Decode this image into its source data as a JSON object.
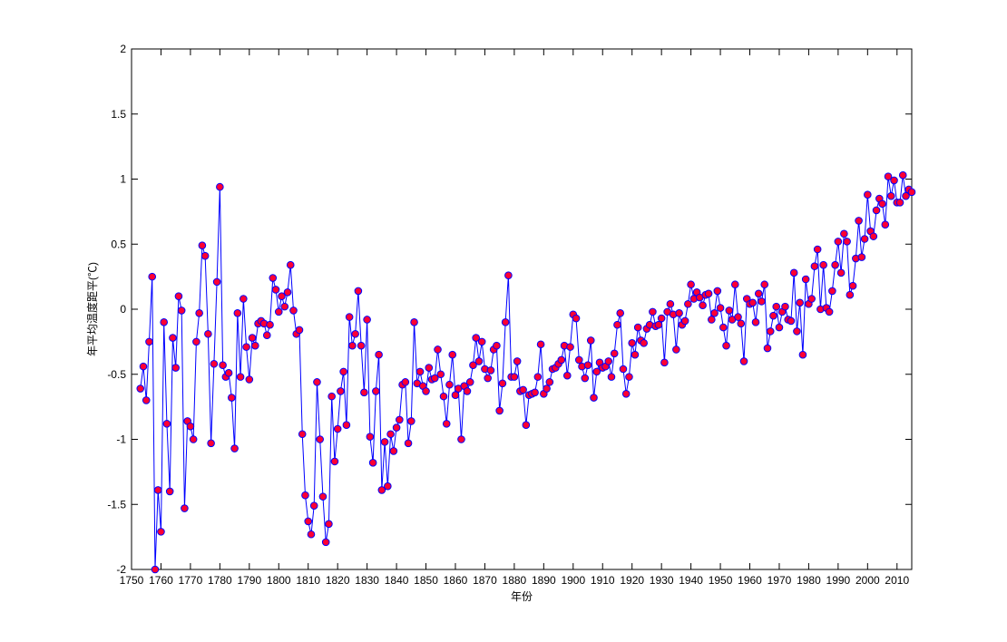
{
  "chart_data": {
    "type": "line",
    "xlabel": "年份",
    "ylabel": "年平均温度距平(℃)",
    "x": [
      1753,
      1754,
      1755,
      1756,
      1757,
      1758,
      1759,
      1760,
      1761,
      1762,
      1763,
      1764,
      1765,
      1766,
      1767,
      1768,
      1769,
      1770,
      1771,
      1772,
      1773,
      1774,
      1775,
      1776,
      1777,
      1778,
      1779,
      1780,
      1781,
      1782,
      1783,
      1784,
      1785,
      1786,
      1787,
      1788,
      1789,
      1790,
      1791,
      1792,
      1793,
      1794,
      1795,
      1796,
      1797,
      1798,
      1799,
      1800,
      1801,
      1802,
      1803,
      1804,
      1805,
      1806,
      1807,
      1808,
      1809,
      1810,
      1811,
      1812,
      1813,
      1814,
      1815,
      1816,
      1817,
      1818,
      1819,
      1820,
      1821,
      1822,
      1823,
      1824,
      1825,
      1826,
      1827,
      1828,
      1829,
      1830,
      1831,
      1832,
      1833,
      1834,
      1835,
      1836,
      1837,
      1838,
      1839,
      1840,
      1841,
      1842,
      1843,
      1844,
      1845,
      1846,
      1847,
      1848,
      1849,
      1850,
      1851,
      1852,
      1853,
      1854,
      1855,
      1856,
      1857,
      1858,
      1859,
      1860,
      1861,
      1862,
      1863,
      1864,
      1865,
      1866,
      1867,
      1868,
      1869,
      1870,
      1871,
      1872,
      1873,
      1874,
      1875,
      1876,
      1877,
      1878,
      1879,
      1880,
      1881,
      1882,
      1883,
      1884,
      1885,
      1886,
      1887,
      1888,
      1889,
      1890,
      1891,
      1892,
      1893,
      1894,
      1895,
      1896,
      1897,
      1898,
      1899,
      1900,
      1901,
      1902,
      1903,
      1904,
      1905,
      1906,
      1907,
      1908,
      1909,
      1910,
      1911,
      1912,
      1913,
      1914,
      1915,
      1916,
      1917,
      1918,
      1919,
      1920,
      1921,
      1922,
      1923,
      1924,
      1925,
      1926,
      1927,
      1928,
      1929,
      1930,
      1931,
      1932,
      1933,
      1934,
      1935,
      1936,
      1937,
      1938,
      1939,
      1940,
      1941,
      1942,
      1943,
      1944,
      1945,
      1946,
      1947,
      1948,
      1949,
      1950,
      1951,
      1952,
      1953,
      1954,
      1955,
      1956,
      1957,
      1958,
      1959,
      1960,
      1961,
      1962,
      1963,
      1964,
      1965,
      1966,
      1967,
      1968,
      1969,
      1970,
      1971,
      1972,
      1973,
      1974,
      1975,
      1976,
      1977,
      1978,
      1979,
      1980,
      1981,
      1982,
      1983,
      1984,
      1985,
      1986,
      1987,
      1988,
      1989,
      1990,
      1991,
      1992,
      1993,
      1994,
      1995,
      1996,
      1997,
      1998,
      1999,
      2000,
      2001,
      2002,
      2003,
      2004,
      2005,
      2006,
      2007,
      2008,
      2009,
      2010,
      2011,
      2012,
      2013,
      2014,
      2015
    ],
    "values": [
      -0.61,
      -0.44,
      -0.7,
      -0.25,
      0.25,
      -2.0,
      -1.39,
      -1.71,
      -0.1,
      -0.88,
      -1.4,
      -0.22,
      -0.45,
      0.1,
      -0.01,
      -1.53,
      -0.86,
      -0.9,
      -1.0,
      -0.25,
      -0.03,
      0.49,
      0.41,
      -0.19,
      -1.03,
      -0.42,
      0.21,
      0.94,
      -0.43,
      -0.52,
      -0.49,
      -0.68,
      -1.07,
      -0.03,
      -0.52,
      0.08,
      -0.29,
      -0.54,
      -0.22,
      -0.28,
      -0.11,
      -0.09,
      -0.11,
      -0.2,
      -0.12,
      0.24,
      0.15,
      -0.02,
      0.1,
      0.02,
      0.13,
      0.34,
      -0.01,
      -0.19,
      -0.16,
      -0.96,
      -1.43,
      -1.63,
      -1.73,
      -1.51,
      -0.56,
      -1.0,
      -1.44,
      -1.79,
      -1.65,
      -0.67,
      -1.17,
      -0.92,
      -0.63,
      -0.48,
      -0.89,
      -0.06,
      -0.28,
      -0.19,
      0.14,
      -0.28,
      -0.64,
      -0.08,
      -0.98,
      -1.18,
      -0.63,
      -0.35,
      -1.39,
      -1.02,
      -1.36,
      -0.96,
      -1.09,
      -0.91,
      -0.85,
      -0.58,
      -0.56,
      -1.03,
      -0.86,
      -0.1,
      -0.57,
      -0.48,
      -0.59,
      -0.63,
      -0.45,
      -0.54,
      -0.53,
      -0.31,
      -0.5,
      -0.67,
      -0.88,
      -0.58,
      -0.35,
      -0.66,
      -0.61,
      -1.0,
      -0.59,
      -0.63,
      -0.56,
      -0.43,
      -0.22,
      -0.4,
      -0.25,
      -0.46,
      -0.53,
      -0.47,
      -0.31,
      -0.28,
      -0.78,
      -0.57,
      -0.1,
      0.26,
      -0.52,
      -0.52,
      -0.4,
      -0.63,
      -0.62,
      -0.89,
      -0.66,
      -0.65,
      -0.64,
      -0.52,
      -0.27,
      -0.65,
      -0.61,
      -0.56,
      -0.46,
      -0.45,
      -0.42,
      -0.39,
      -0.28,
      -0.51,
      -0.29,
      -0.04,
      -0.07,
      -0.39,
      -0.44,
      -0.53,
      -0.43,
      -0.24,
      -0.68,
      -0.48,
      -0.41,
      -0.45,
      -0.44,
      -0.4,
      -0.52,
      -0.34,
      -0.12,
      -0.03,
      -0.46,
      -0.65,
      -0.52,
      -0.26,
      -0.35,
      -0.14,
      -0.24,
      -0.26,
      -0.15,
      -0.12,
      -0.02,
      -0.13,
      -0.12,
      -0.07,
      -0.41,
      -0.02,
      0.04,
      -0.04,
      -0.31,
      -0.03,
      -0.12,
      -0.09,
      0.04,
      0.19,
      0.08,
      0.13,
      0.09,
      0.03,
      0.11,
      0.12,
      -0.08,
      -0.03,
      0.14,
      0.01,
      -0.14,
      -0.28,
      -0.01,
      -0.08,
      0.19,
      -0.06,
      -0.11,
      -0.4,
      0.08,
      0.04,
      0.05,
      -0.1,
      0.12,
      0.06,
      0.19,
      -0.3,
      -0.17,
      -0.05,
      0.02,
      -0.14,
      -0.02,
      0.02,
      -0.08,
      -0.09,
      0.28,
      -0.17,
      0.05,
      -0.35,
      0.23,
      0.04,
      0.08,
      0.33,
      0.46,
      0.0,
      0.34,
      0.01,
      -0.02,
      0.14,
      0.34,
      0.52,
      0.28,
      0.58,
      0.52,
      0.11,
      0.18,
      0.39,
      0.68,
      0.4,
      0.54,
      0.88,
      0.6,
      0.56,
      0.76,
      0.85,
      0.81,
      0.65,
      1.02,
      0.87,
      0.99,
      0.82,
      0.82,
      1.03,
      0.87,
      0.92,
      0.9
    ],
    "color": "#0000ff",
    "marker_color": "#ff0033",
    "xlim": [
      1750,
      2015
    ],
    "xticks": [
      1750,
      1760,
      1770,
      1780,
      1790,
      1800,
      1810,
      1820,
      1830,
      1840,
      1850,
      1860,
      1870,
      1880,
      1890,
      1900,
      1910,
      1920,
      1930,
      1940,
      1950,
      1960,
      1970,
      1980,
      1990,
      2000,
      2010
    ],
    "ylim": [
      -2,
      2
    ],
    "yticks": [
      -2,
      -1.5,
      -1,
      -0.5,
      0,
      0.5,
      1,
      1.5,
      2
    ],
    "grid": false
  }
}
